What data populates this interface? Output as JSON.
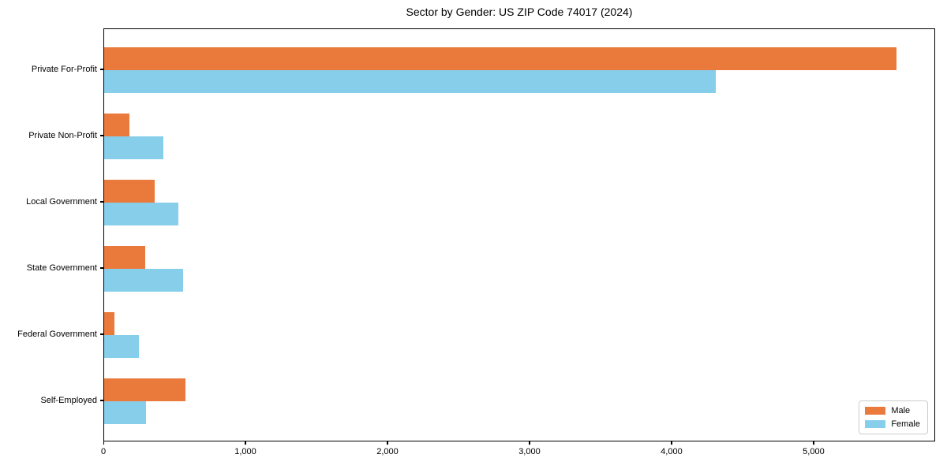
{
  "title": "Sector by Gender: US ZIP Code 74017 (2024)",
  "chart_data": {
    "type": "bar",
    "orientation": "horizontal",
    "title": "Sector by Gender: US ZIP Code 74017 (2024)",
    "xlabel": "",
    "ylabel": "",
    "categories": [
      "Private For-Profit",
      "Private Non-Profit",
      "Local Government",
      "State Government",
      "Federal Government",
      "Self-Employed"
    ],
    "series": [
      {
        "name": "Male",
        "color": "#e97a3b",
        "values": [
          5578,
          178,
          356,
          289,
          72,
          572
        ]
      },
      {
        "name": "Female",
        "color": "#87ceeb",
        "values": [
          4306,
          417,
          522,
          556,
          244,
          294
        ]
      }
    ],
    "xlim": [
      0,
      5856
    ],
    "xticks": [
      0,
      1000,
      2000,
      3000,
      4000,
      5000
    ],
    "xtick_labels": [
      "0",
      "1,000",
      "2,000",
      "3,000",
      "4,000",
      "5,000"
    ],
    "grid": false,
    "legend": {
      "position": "lower right",
      "entries": [
        "Male",
        "Female"
      ]
    }
  }
}
